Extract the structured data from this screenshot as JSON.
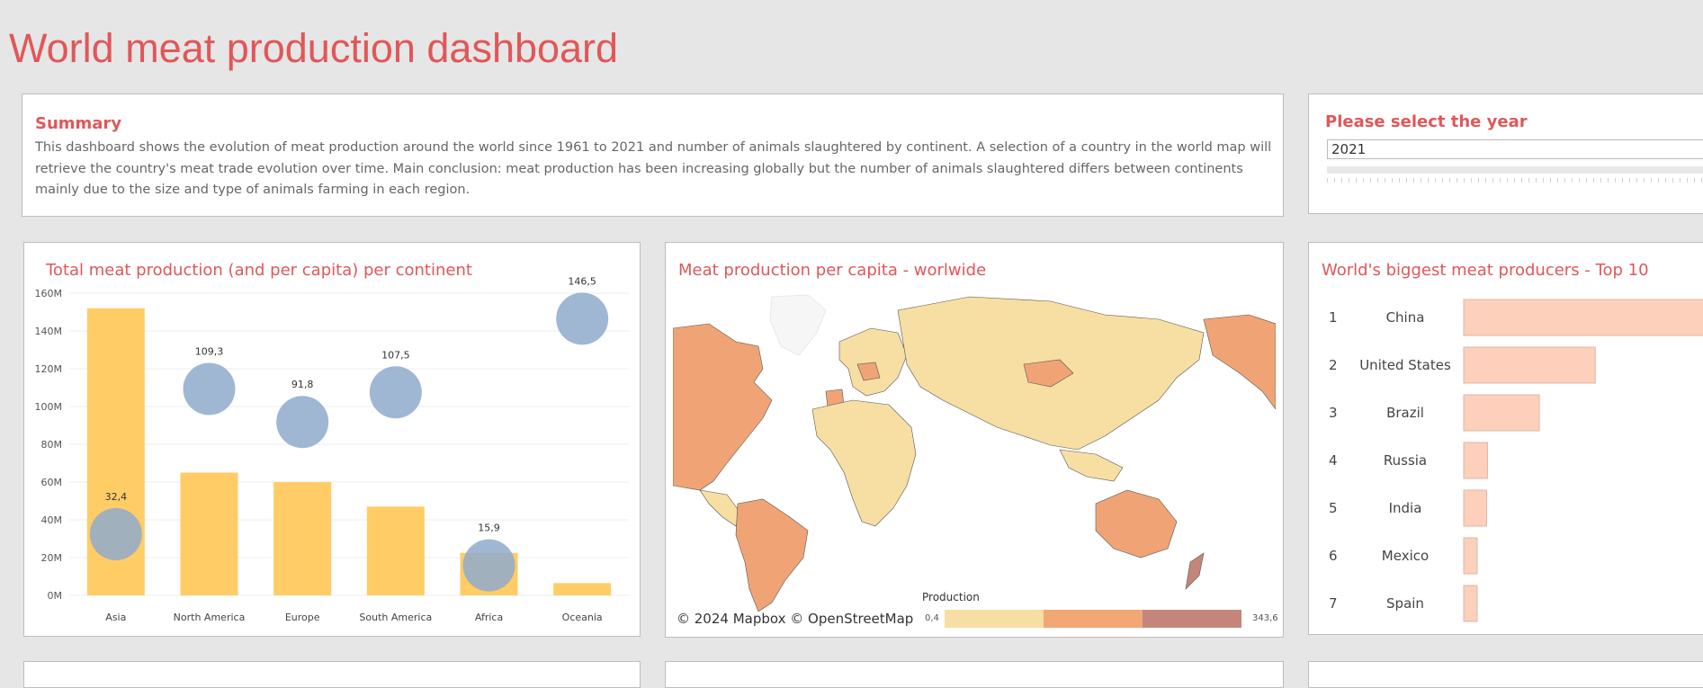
{
  "dashboard": {
    "title": "World meat production dashboard"
  },
  "summary": {
    "title": "Summary",
    "text": "This dashboard shows the evolution of meat production around the world since 1961 to 2021 and number of animals slaughtered by continent. A selection of a country in the world map will retrieve the country's meat trade evolution over time. Main conclusion: meat production has been increasing globally but the number of animals slaughtered differs between continents mainly due to the size and type of animals farming in each region."
  },
  "year_filter": {
    "title": "Please select the year",
    "value": "2021"
  },
  "continent_panel": {
    "title": "Total meat production (and per capita) per continent",
    "chart_data": {
      "type": "bar",
      "categories": [
        "Asia",
        "North America",
        "Europe",
        "South America",
        "Africa",
        "Oceania"
      ],
      "series": [
        {
          "values": [
            152000000,
            65000000,
            60000000,
            47000000,
            22500000,
            6500000
          ]
        },
        {
          "values": [
            32.4,
            109.3,
            91.8,
            107.5,
            15.9,
            146.5
          ]
        }
      ],
      "per_capita_labels": [
        "32,4",
        "109,3",
        "91,8",
        "107,5",
        "15,9",
        "146,5"
      ],
      "y_ticks": [
        "0M",
        "20M",
        "40M",
        "60M",
        "80M",
        "100M",
        "120M",
        "140M",
        "160M"
      ],
      "ylim": [
        0,
        160000000
      ],
      "bar_color": "#ffcc66",
      "bubble_color": "#8faacc"
    }
  },
  "map_panel": {
    "title": "Meat production per capita - worlwide",
    "attribution": "© 2024 Mapbox  © OpenStreetMap",
    "legend": {
      "title": "Production",
      "min": "0,4",
      "max": "343,6",
      "colors": [
        "#f7dea3",
        "#f1a874",
        "#c4867a"
      ]
    }
  },
  "top10_panel": {
    "title": "World's biggest meat producers - Top 10",
    "chart_data": {
      "type": "bar",
      "categories": [
        "China",
        "United States",
        "Brazil",
        "Russia",
        "India",
        "Mexico",
        "Spain"
      ],
      "ranks": [
        "1",
        "2",
        "3",
        "4",
        "5",
        "6",
        "7"
      ],
      "values": [
        90,
        47,
        27,
        8.5,
        8.2,
        4.8,
        4.8
      ],
      "bar_color": "#fcd0bb"
    }
  }
}
